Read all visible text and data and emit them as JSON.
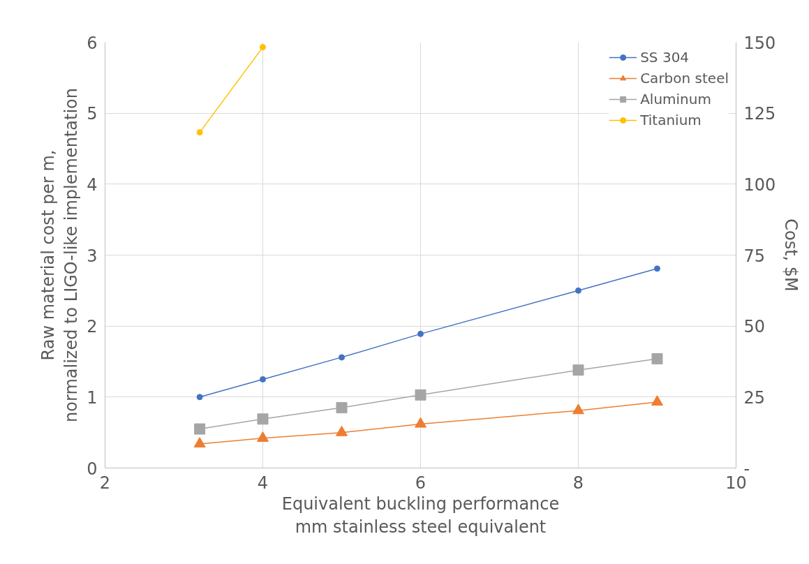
{
  "chart_data": {
    "type": "line",
    "xlabel": "Equivalent buckling performance\nmm stainless steel equivalent",
    "ylabel": "Raw material cost per m,\nnormalized to LIGO-like implementation",
    "y2label": "Cost, $M",
    "xlim": [
      2,
      10
    ],
    "xticks": [
      2,
      4,
      6,
      8,
      10
    ],
    "ylim": [
      0,
      6
    ],
    "yticks": [
      0,
      1,
      2,
      3,
      4,
      5,
      6
    ],
    "y2lim": [
      0,
      150
    ],
    "y2ticks": [
      {
        "value": 0,
        "label": "-"
      },
      25,
      50,
      75,
      100,
      125,
      150
    ],
    "grid": true,
    "legend": "top right",
    "series": [
      {
        "name": "SS 304",
        "color": "#4472c4",
        "marker": "circle",
        "x": [
          3.2,
          4,
          5,
          6,
          8,
          9
        ],
        "values": [
          1.0,
          1.25,
          1.56,
          1.89,
          2.5,
          2.81
        ]
      },
      {
        "name": "Carbon steel",
        "color": "#ed7d31",
        "marker": "triangle",
        "x": [
          3.2,
          4,
          5,
          6,
          8,
          9
        ],
        "values": [
          0.34,
          0.42,
          0.5,
          0.62,
          0.81,
          0.93
        ]
      },
      {
        "name": "Aluminum",
        "color": "#a5a5a5",
        "marker": "square",
        "x": [
          3.2,
          4,
          5,
          6,
          8,
          9
        ],
        "values": [
          0.55,
          0.69,
          0.85,
          1.03,
          1.38,
          1.54
        ]
      },
      {
        "name": "Titanium",
        "color": "#ffc000",
        "marker": "circle",
        "x": [
          3.2,
          4
        ],
        "values": [
          4.73,
          5.93
        ]
      }
    ]
  }
}
